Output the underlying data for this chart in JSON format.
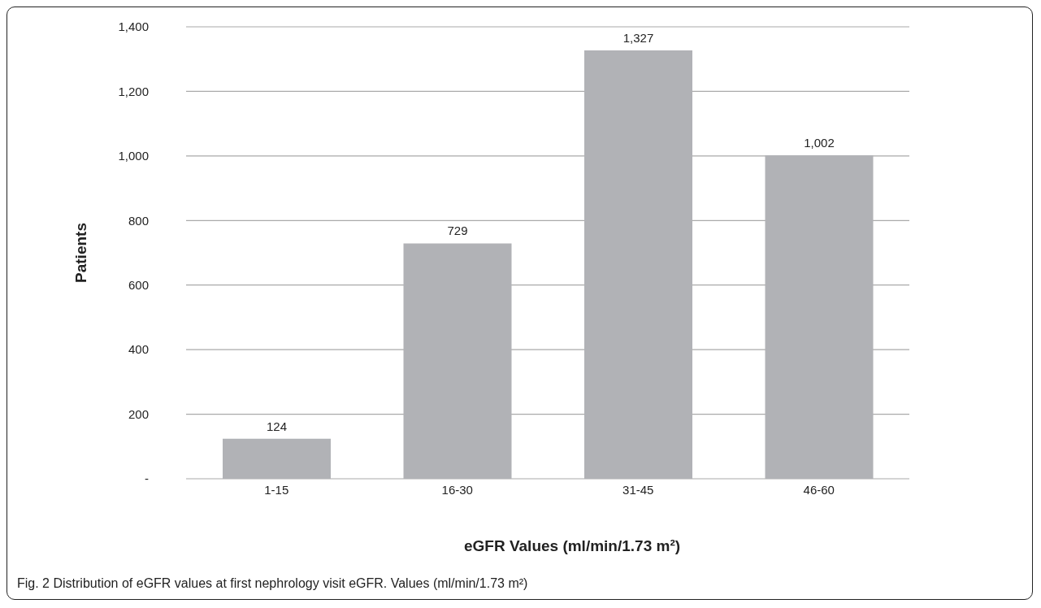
{
  "chart_data": {
    "type": "bar",
    "categories": [
      "1-15",
      "16-30",
      "31-45",
      "46-60"
    ],
    "values": [
      124,
      729,
      1327,
      1002
    ],
    "value_labels": [
      "124",
      "729",
      "1,327",
      "1,002"
    ],
    "color": "#b1b2b6",
    "ylabel": "Patients",
    "xlabel": "eGFR Values (ml/min/1.73 m²)",
    "ylim": [
      0,
      1400
    ],
    "yticks": [
      {
        "value": 0,
        "label": "-"
      },
      200,
      400,
      600,
      800,
      {
        "value": 1000,
        "label": "1,000"
      },
      {
        "value": 1200,
        "label": "1,200"
      },
      {
        "value": 1400,
        "label": "1,400"
      }
    ],
    "grid": "y",
    "annotations": [
      "Fig. 2 Distribution of eGFR values at first nephrology visit eGFR. Values (ml/min/1.73 m²)"
    ]
  }
}
